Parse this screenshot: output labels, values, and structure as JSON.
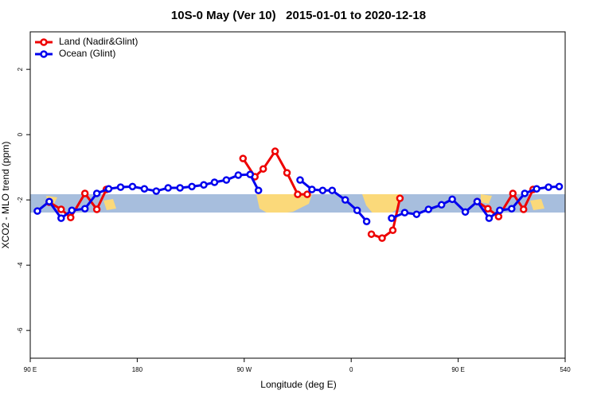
{
  "chart_data": {
    "type": "line",
    "title": "10S-0 May (Ver 10)   2015-01-01 to 2020-12-18",
    "x_label": "Longitude (deg E)",
    "y_label": "XCO2 - MLO trend (ppm)",
    "xlim": [
      90,
      540
    ],
    "ylim": [
      -6.85,
      3.15
    ],
    "xticks": [
      {
        "value": 90,
        "label": "90 E"
      },
      180,
      {
        "value": 270,
        "label": "90 W"
      },
      {
        "value": 360,
        "label": "0"
      },
      {
        "value": 450,
        "label": "90 E"
      },
      540
    ],
    "yticks": [
      2,
      0,
      -2,
      -4,
      -6
    ],
    "legend": "top-left",
    "series": [
      {
        "name": "Land (Nadir&Glint)",
        "color": "#ee0000",
        "x": [
          106,
          116,
          124,
          136,
          146,
          154,
          null,
          269,
          279,
          286,
          296,
          306,
          315,
          323,
          null,
          377,
          386,
          395,
          401,
          null,
          466,
          475,
          484,
          496,
          505,
          513
        ],
        "values": [
          -2.07,
          -2.29,
          -2.54,
          -1.8,
          -2.29,
          -1.68,
          null,
          -0.73,
          -1.29,
          -1.05,
          -0.51,
          -1.17,
          -1.83,
          -1.83,
          null,
          -3.05,
          -3.17,
          -2.93,
          -1.95,
          null,
          -2.05,
          -2.27,
          -2.51,
          -1.8,
          -2.29,
          -1.68
        ]
      },
      {
        "name": "Ocean (Glint)",
        "color": "#0000ee",
        "x": [
          96,
          106,
          116,
          125,
          136,
          146,
          156,
          166,
          176,
          186,
          196,
          206,
          216,
          226,
          236,
          245,
          255,
          265,
          275,
          282,
          null,
          317,
          327,
          336,
          344,
          355,
          365,
          373,
          null,
          394,
          405,
          415,
          425,
          436,
          445,
          456,
          466,
          476,
          485,
          495,
          506,
          516,
          526,
          535
        ],
        "values": [
          -2.34,
          -2.05,
          -2.56,
          -2.32,
          -2.27,
          -1.8,
          -1.66,
          -1.61,
          -1.59,
          -1.66,
          -1.73,
          -1.63,
          -1.63,
          -1.59,
          -1.54,
          -1.46,
          -1.39,
          -1.24,
          -1.22,
          -1.71,
          null,
          -1.39,
          -1.68,
          -1.71,
          -1.71,
          -2.0,
          -2.32,
          -2.66,
          null,
          -2.56,
          -2.39,
          -2.44,
          -2.29,
          -2.15,
          -1.98,
          -2.37,
          -2.05,
          -2.56,
          -2.32,
          -2.27,
          -1.8,
          -1.66,
          -1.61,
          -1.59
        ]
      }
    ]
  }
}
